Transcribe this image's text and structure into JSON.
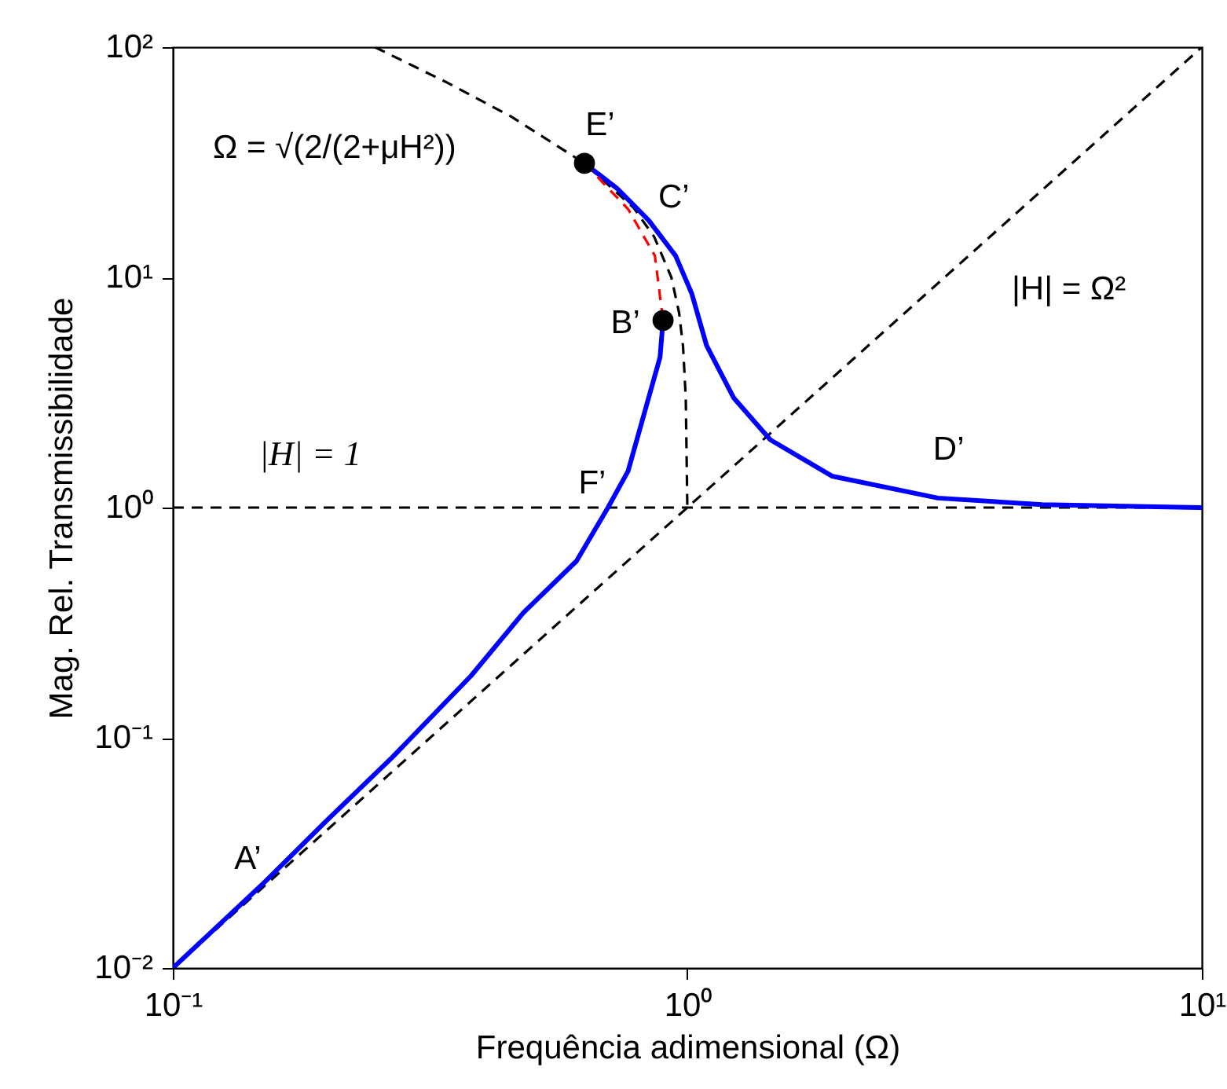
{
  "chart_data": {
    "type": "line",
    "xlabel": "Frequência adimensional (Ω)",
    "ylabel": "Mag. Rel. Transmissibilidade",
    "log": "xy",
    "xlim": [
      0.1,
      10
    ],
    "ylim": [
      0.01,
      100
    ],
    "xticks": [
      {
        "value": 0.1,
        "label": "10⁻¹"
      },
      {
        "value": 1,
        "label": "10⁰"
      },
      {
        "value": 10,
        "label": "10¹"
      }
    ],
    "yticks": [
      {
        "value": 0.01,
        "label": "10⁻²"
      },
      {
        "value": 0.1,
        "label": "10⁻¹"
      },
      {
        "value": 1,
        "label": "10⁰"
      },
      {
        "value": 10,
        "label": "10¹"
      },
      {
        "value": 100,
        "label": "10²"
      }
    ],
    "grid": false,
    "series": [
      {
        "color": "#000000",
        "line_style": "dashed",
        "x": [
          0.247,
          0.342,
          0.454,
          0.631,
          0.787,
          0.862,
          0.931,
          0.964,
          0.981,
          0.993,
          1.0
        ],
        "values": [
          100,
          70,
          50,
          31.3,
          20,
          15,
          10,
          7,
          5,
          3,
          1
        ]
      },
      {
        "color": "#000000",
        "line_style": "dashed",
        "x": [
          0.1,
          10
        ],
        "values": [
          0.01,
          100
        ]
      },
      {
        "color": "#0000ff",
        "line_style": "solid",
        "x": [
          0.1,
          0.149,
          0.198,
          0.267,
          0.38,
          0.48,
          0.609,
          0.701,
          0.767,
          0.841,
          0.885,
          0.897
        ],
        "values": [
          0.01,
          0.023,
          0.0432,
          0.0822,
          0.186,
          0.349,
          0.586,
          1.0,
          1.44,
          3.0,
          4.5,
          6.5
        ]
      },
      {
        "color": "#0000ff",
        "line_style": "solid",
        "x": [
          0.631,
          0.731,
          0.841,
          0.949,
          1.02,
          1.09,
          1.23,
          1.45,
          1.91,
          3.07,
          4.89,
          10
        ],
        "values": [
          31.3,
          24.3,
          17.7,
          12.4,
          8.5,
          5.05,
          3.0,
          1.97,
          1.37,
          1.1,
          1.03,
          1.0
        ]
      },
      {
        "color": "#ff0000",
        "line_style": "dashed",
        "x": [
          0.631,
          0.767,
          0.865,
          0.897
        ],
        "values": [
          31.3,
          19.8,
          12.4,
          6.5
        ]
      },
      {
        "type": "scatter",
        "marker": "circle",
        "color": "#000000",
        "x": [
          0.631,
          0.897
        ],
        "values": [
          31.3,
          6.5
        ]
      }
    ],
    "ref_lines": [
      {
        "axis": "y",
        "value": 1,
        "label": "|H| = 1",
        "color": "#000000",
        "line_style": "dashed"
      }
    ],
    "annotations": [
      {
        "text": "Ω = √(2/(2+μH²))",
        "x": 0.342,
        "y": 70
      },
      {
        "text": "|H| = Ω²",
        "x": 3.37,
        "y": 11.36
      },
      {
        "text": "A’",
        "x": 0.149,
        "y": 0.023
      },
      {
        "text": "B’",
        "x": 0.897,
        "y": 6.5
      },
      {
        "text": "C’",
        "x": 0.841,
        "y": 17.7
      },
      {
        "text": "D’",
        "x": 3.22,
        "y": 1.09
      },
      {
        "text": "E’",
        "x": 0.631,
        "y": 31.3
      },
      {
        "text": "F’",
        "x": 0.701,
        "y": 1.0
      }
    ]
  }
}
